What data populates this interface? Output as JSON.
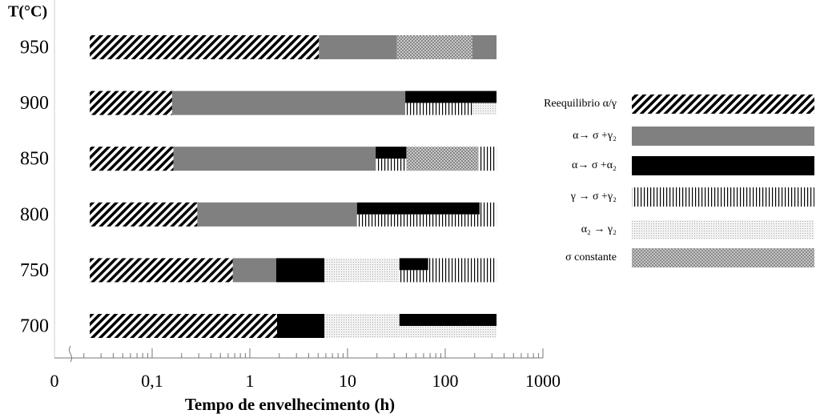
{
  "chart_data": {
    "type": "segmented-bar",
    "y_title": "T(°C)",
    "x_title": "Tempo de envelhecimento (h)",
    "x_scale": "log",
    "xlim": [
      0.01,
      1000
    ],
    "x_break_label": "0",
    "xticks": [
      {
        "value": 0.1,
        "label": "0,1"
      },
      1,
      10,
      100,
      1000
    ],
    "phases": [
      {
        "name": "Reequilibrio α/γ",
        "pattern": "hatch"
      },
      {
        "name": "α→ σ +γ₂",
        "pattern": "gray"
      },
      {
        "name": "α→ σ +α₂",
        "pattern": "black"
      },
      {
        "name": "γ → σ +γ₂",
        "pattern": "vertical"
      },
      {
        "name": "α₂ → γ₂",
        "pattern": "dotted"
      },
      {
        "name": "σ constante",
        "pattern": "crosshatch"
      }
    ],
    "rows": [
      {
        "label": "950",
        "segments": [
          {
            "phase": 0,
            "start": 0.023,
            "end": 5.1,
            "part": "full"
          },
          {
            "phase": 1,
            "start": 5.1,
            "end": 32,
            "part": "full"
          },
          {
            "phase": 5,
            "start": 32,
            "end": 190,
            "part": "full"
          },
          {
            "phase": 1,
            "start": 190,
            "end": 335,
            "part": "full"
          }
        ]
      },
      {
        "label": "900",
        "segments": [
          {
            "phase": 0,
            "start": 0.023,
            "end": 0.16,
            "part": "full"
          },
          {
            "phase": 1,
            "start": 0.16,
            "end": 39,
            "part": "full"
          },
          {
            "phase": 2,
            "start": 39,
            "end": 335,
            "part": "top"
          },
          {
            "phase": 3,
            "start": 39,
            "end": 190,
            "part": "bottom"
          },
          {
            "phase": 4,
            "start": 190,
            "end": 335,
            "part": "bottom"
          }
        ]
      },
      {
        "label": "850",
        "segments": [
          {
            "phase": 0,
            "start": 0.023,
            "end": 0.165,
            "part": "full"
          },
          {
            "phase": 1,
            "start": 0.165,
            "end": 19.4,
            "part": "full"
          },
          {
            "phase": 2,
            "start": 19.4,
            "end": 40,
            "part": "top"
          },
          {
            "phase": 3,
            "start": 19.4,
            "end": 40,
            "part": "bottom"
          },
          {
            "phase": 5,
            "start": 40,
            "end": 217,
            "part": "full"
          },
          {
            "phase": 3,
            "start": 217,
            "end": 335,
            "part": "full"
          }
        ]
      },
      {
        "label": "800",
        "segments": [
          {
            "phase": 0,
            "start": 0.023,
            "end": 0.29,
            "part": "full"
          },
          {
            "phase": 1,
            "start": 0.29,
            "end": 12.5,
            "part": "full"
          },
          {
            "phase": 2,
            "start": 12.5,
            "end": 225,
            "part": "top"
          },
          {
            "phase": 3,
            "start": 12.5,
            "end": 225,
            "part": "bottom"
          },
          {
            "phase": 3,
            "start": 225,
            "end": 335,
            "part": "full"
          }
        ]
      },
      {
        "label": "750",
        "segments": [
          {
            "phase": 0,
            "start": 0.023,
            "end": 0.67,
            "part": "full"
          },
          {
            "phase": 1,
            "start": 0.67,
            "end": 1.86,
            "part": "full"
          },
          {
            "phase": 2,
            "start": 1.86,
            "end": 5.8,
            "part": "full"
          },
          {
            "phase": 4,
            "start": 5.8,
            "end": 34,
            "part": "full"
          },
          {
            "phase": 2,
            "start": 34,
            "end": 67,
            "part": "top"
          },
          {
            "phase": 3,
            "start": 34,
            "end": 67,
            "part": "bottom"
          },
          {
            "phase": 3,
            "start": 67,
            "end": 335,
            "part": "full"
          }
        ]
      },
      {
        "label": "700",
        "segments": [
          {
            "phase": 0,
            "start": 0.023,
            "end": 1.9,
            "part": "full"
          },
          {
            "phase": 2,
            "start": 1.9,
            "end": 5.8,
            "part": "full"
          },
          {
            "phase": 4,
            "start": 5.8,
            "end": 34,
            "part": "full"
          },
          {
            "phase": 2,
            "start": 34,
            "end": 335,
            "part": "top"
          },
          {
            "phase": 4,
            "start": 34,
            "end": 335,
            "part": "bottom"
          }
        ]
      }
    ]
  }
}
